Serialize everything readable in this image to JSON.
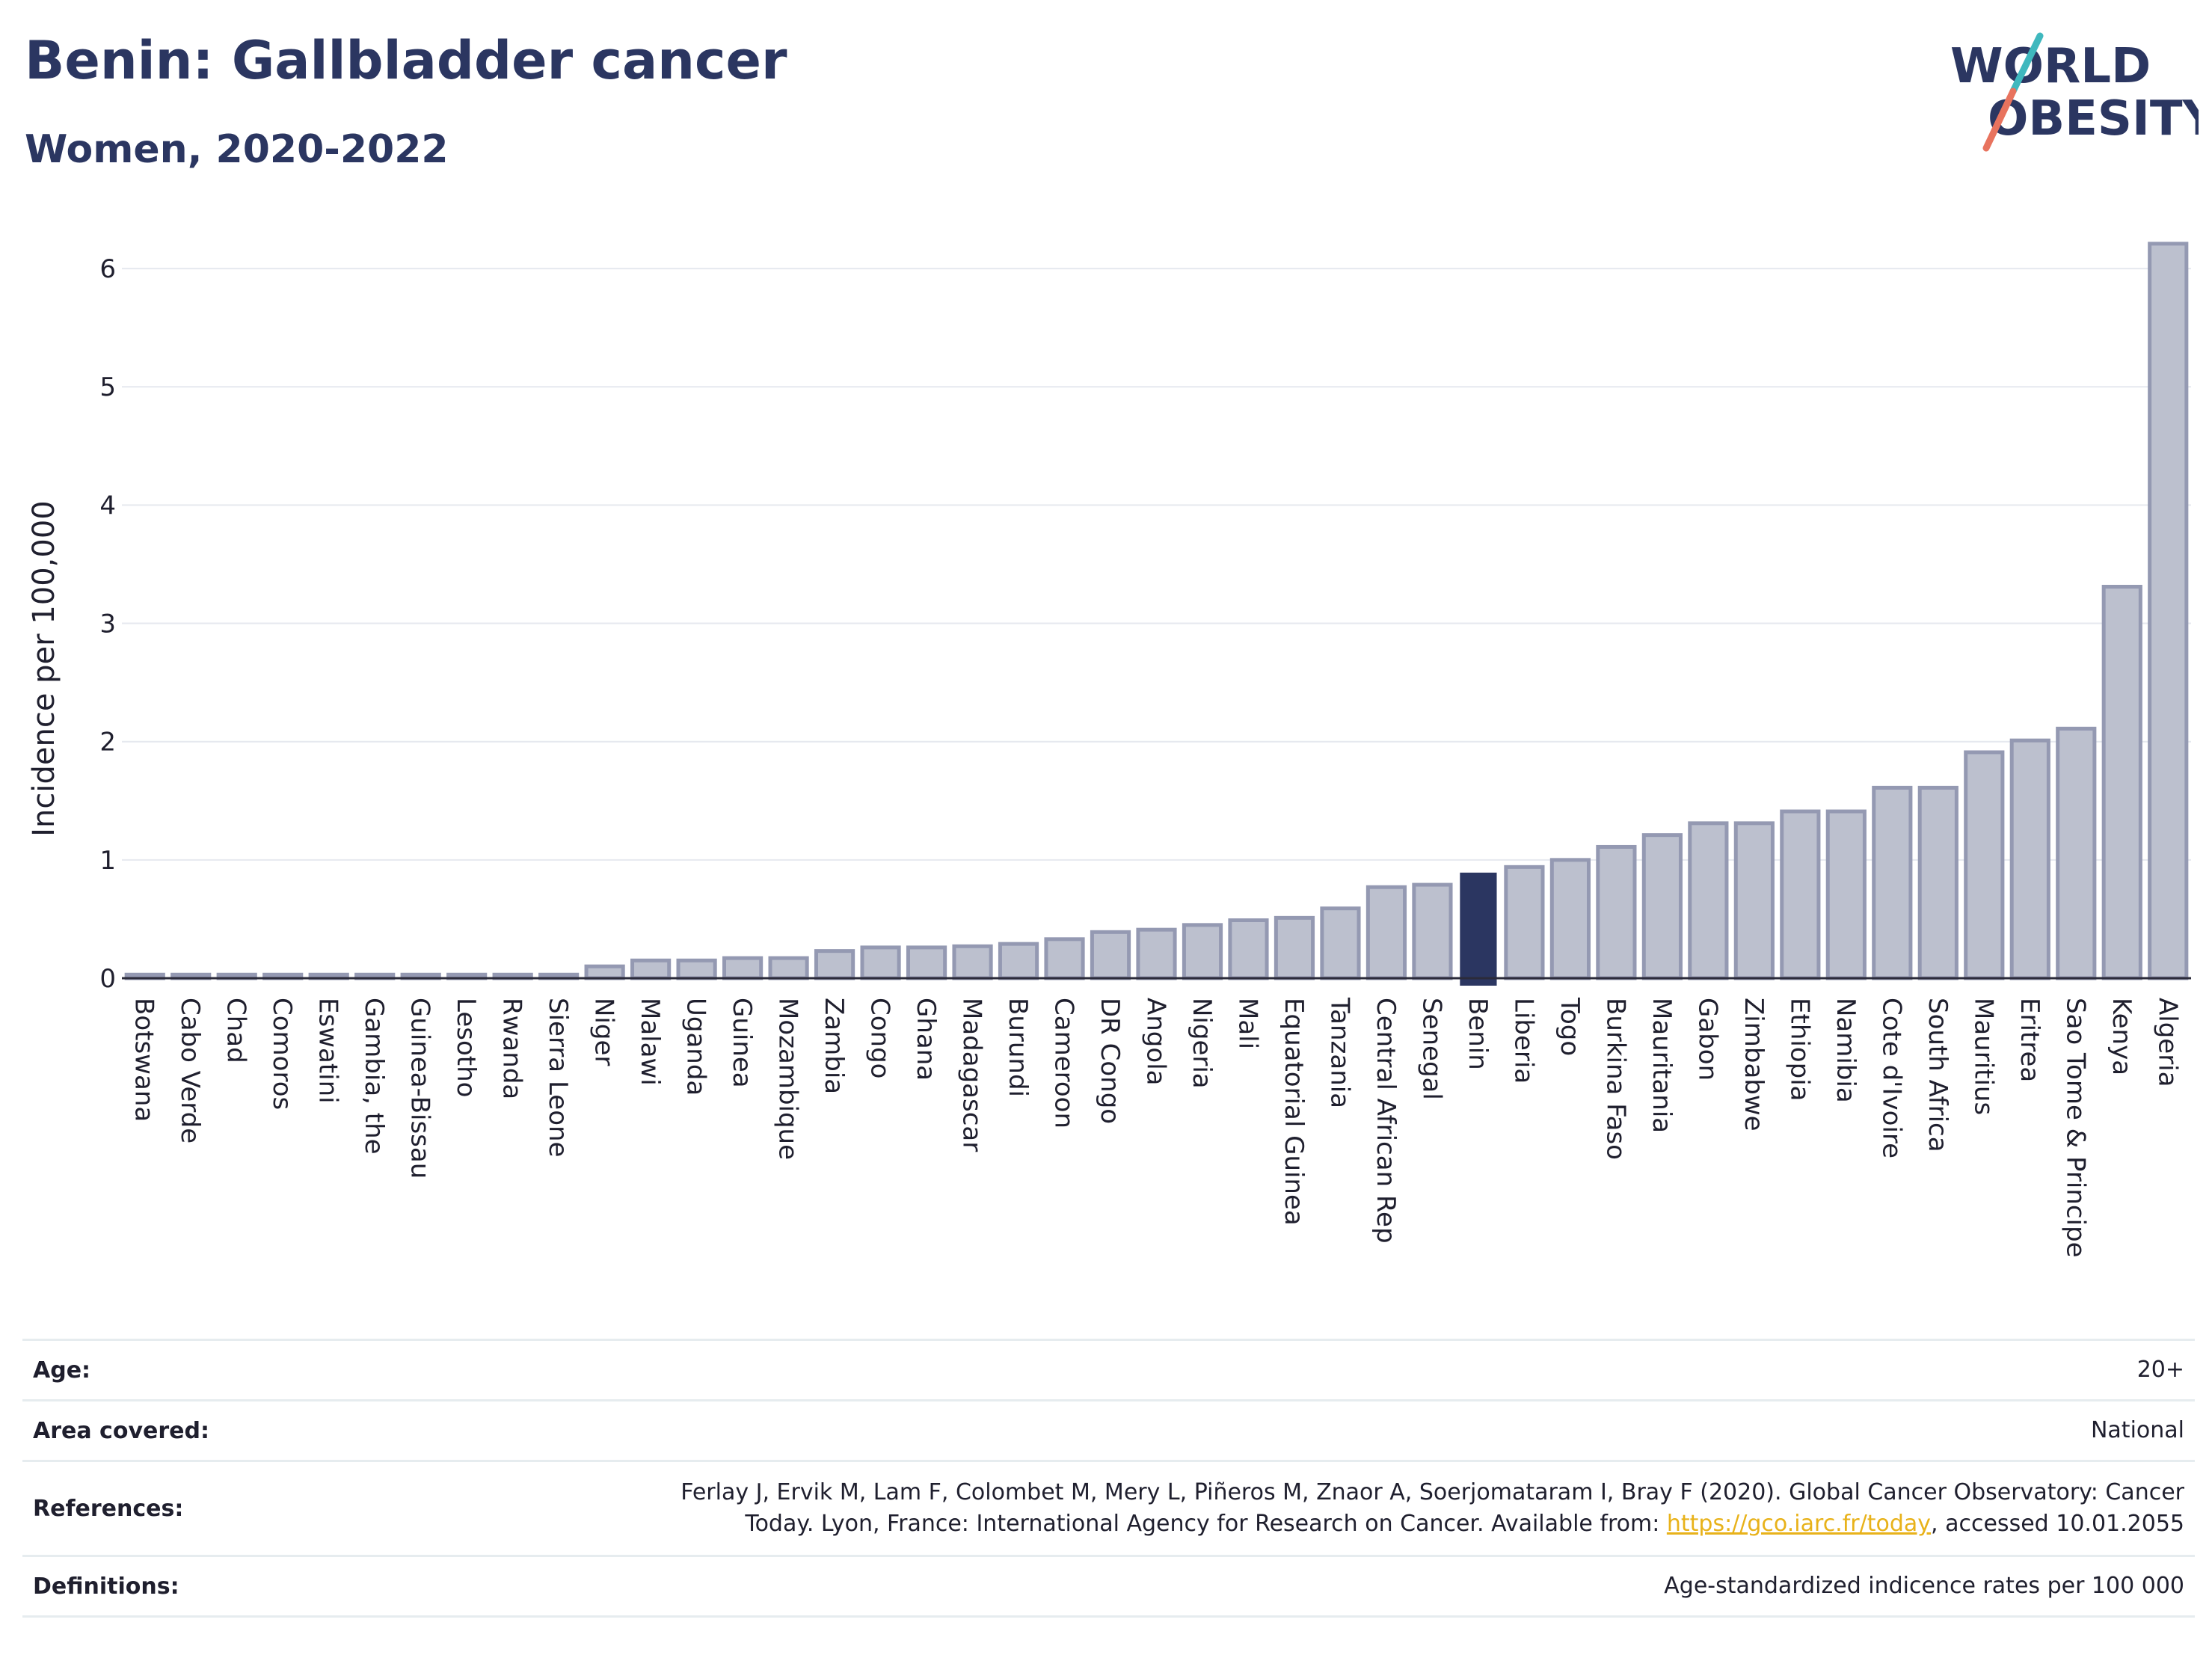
{
  "header": {
    "title": "Benin: Gallbladder cancer",
    "subtitle": "Women, 2020-2022"
  },
  "logo": {
    "line1": "WORLD",
    "line2": "OBESITY",
    "colors": {
      "text": "#2b3661",
      "slash_teal": "#3fb8be",
      "slash_coral": "#e8735e"
    }
  },
  "colors": {
    "bar": "#bcc0ce",
    "bar_stroke": "#9499b2",
    "highlight": "#2b3661",
    "grid": "#e6e9ef",
    "axis": "#2b2b3a"
  },
  "chart_data": {
    "type": "bar",
    "ylabel": "Incidence per 100,000",
    "ylim": [
      0,
      6.5
    ],
    "yticks": [
      0,
      1,
      2,
      3,
      4,
      5,
      6
    ],
    "grid": true,
    "highlight": "Benin",
    "categories": [
      "Botswana",
      "Cabo Verde",
      "Chad",
      "Comoros",
      "Eswatini",
      "Gambia, the",
      "Guinea-Bissau",
      "Lesotho",
      "Rwanda",
      "Sierra Leone",
      "Niger",
      "Malawi",
      "Uganda",
      "Guinea",
      "Mozambique",
      "Zambia",
      "Congo",
      "Ghana",
      "Madagascar",
      "Burundi",
      "Cameroon",
      "DR Congo",
      "Angola",
      "Nigeria",
      "Mali",
      "Equatorial Guinea",
      "Tanzania",
      "Central African Rep",
      "Senegal",
      "Benin",
      "Liberia",
      "Togo",
      "Burkina Faso",
      "Mauritania",
      "Gabon",
      "Zimbabwe",
      "Ethiopia",
      "Namibia",
      "Cote d'Ivoire",
      "South Africa",
      "Mauritius",
      "Eritrea",
      "Sao Tome & Principe",
      "Kenya",
      "Algeria"
    ],
    "values": [
      0.03,
      0.03,
      0.03,
      0.03,
      0.03,
      0.03,
      0.03,
      0.03,
      0.03,
      0.03,
      0.1,
      0.15,
      0.15,
      0.17,
      0.17,
      0.23,
      0.26,
      0.26,
      0.27,
      0.29,
      0.33,
      0.39,
      0.41,
      0.45,
      0.49,
      0.51,
      0.59,
      0.77,
      0.79,
      0.88,
      0.94,
      1.0,
      1.11,
      1.21,
      1.31,
      1.31,
      1.41,
      1.41,
      1.61,
      1.61,
      1.91,
      2.01,
      2.11,
      3.31,
      6.21
    ]
  },
  "meta": {
    "age_label": "Age:",
    "age_value": "20+",
    "area_label": "Area covered:",
    "area_value": "National",
    "ref_label": "References:",
    "ref_line1": "Ferlay J, Ervik M, Lam F, Colombet M, Mery L, Piñeros M, Znaor A, Soerjomataram I, Bray F (2020). Global Cancer Observatory: Cancer",
    "ref_line2_pre": "Today. Lyon, France: International Agency for Research on Cancer. Available from: ",
    "ref_link": "https://gco.iarc.fr/today",
    "ref_line2_post": ", accessed 10.01.2055",
    "def_label": "Definitions:",
    "def_value": "Age-standardized indicence rates per 100 000"
  }
}
